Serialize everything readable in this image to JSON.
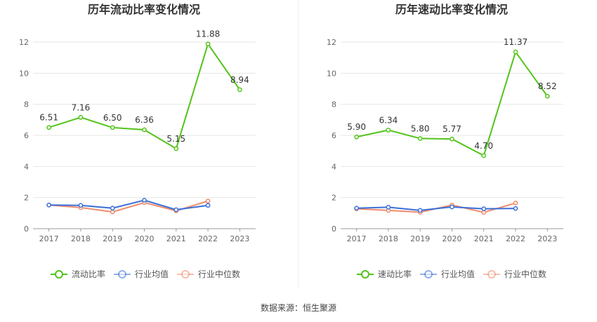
{
  "chart_data": [
    {
      "type": "line",
      "title": "历年流动比率变化情况",
      "categories": [
        "2017",
        "2018",
        "2019",
        "2020",
        "2021",
        "2022",
        "2023"
      ],
      "ylim": [
        0,
        12
      ],
      "yticks": [
        0,
        2,
        4,
        6,
        8,
        10,
        12
      ],
      "series": [
        {
          "name": "流动比率",
          "color": "#52c41a",
          "values": [
            6.51,
            7.16,
            6.5,
            6.36,
            5.15,
            11.88,
            8.94
          ],
          "labels": [
            "6.51",
            "7.16",
            "6.50",
            "6.36",
            "5.15",
            "11.88",
            "8.94"
          ]
        },
        {
          "name": "行业均值",
          "color": "#3b6fd8",
          "values": [
            1.52,
            1.5,
            1.32,
            1.83,
            1.22,
            1.5,
            null
          ]
        },
        {
          "name": "行业中位数",
          "color": "#f08b6b",
          "values": [
            1.52,
            1.36,
            1.08,
            1.68,
            1.15,
            1.78,
            null
          ]
        }
      ],
      "legend_position": "bottom",
      "grid": true
    },
    {
      "type": "line",
      "title": "历年速动比率变化情况",
      "categories": [
        "2017",
        "2018",
        "2019",
        "2020",
        "2021",
        "2022",
        "2023"
      ],
      "ylim": [
        0,
        12
      ],
      "yticks": [
        0,
        2,
        4,
        6,
        8,
        10,
        12
      ],
      "series": [
        {
          "name": "速动比率",
          "color": "#52c41a",
          "values": [
            5.9,
            6.34,
            5.8,
            5.77,
            4.7,
            11.37,
            8.52
          ],
          "labels": [
            "5.90",
            "6.34",
            "5.80",
            "5.77",
            "4.70",
            "11.37",
            "8.52"
          ]
        },
        {
          "name": "行业均值",
          "color": "#3b6fd8",
          "values": [
            1.32,
            1.38,
            1.18,
            1.4,
            1.28,
            1.3,
            null
          ]
        },
        {
          "name": "行业中位数",
          "color": "#f08b6b",
          "values": [
            1.28,
            1.18,
            1.06,
            1.52,
            1.05,
            1.65,
            null
          ]
        }
      ],
      "legend_position": "bottom",
      "grid": true
    }
  ],
  "source_text": "数据来源：恒生聚源"
}
